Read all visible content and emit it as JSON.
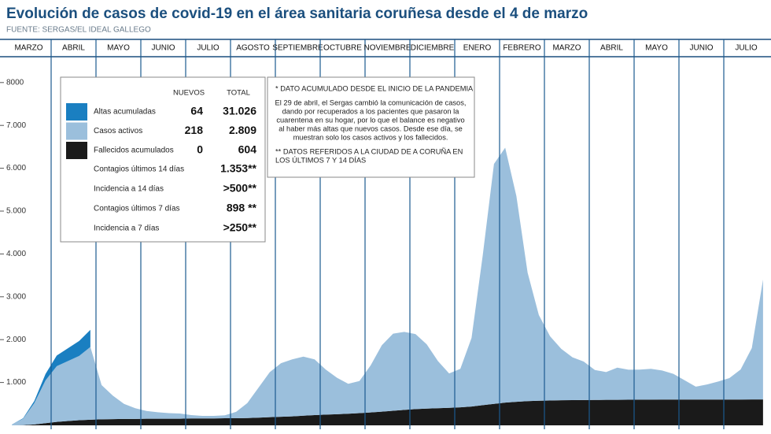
{
  "chart_data": {
    "type": "stacked_area",
    "title": "Evolución de casos de covid-19 en el área sanitaria coruñesa desde el 4 de marzo",
    "source": "FUENTE: SERGAS/EL IDEAL GALLEGO",
    "categories": [
      "MARZO",
      null,
      null,
      null,
      "ABRIL",
      null,
      null,
      null,
      "MAYO",
      null,
      null,
      null,
      "JUNIO",
      null,
      null,
      null,
      "JULIO",
      null,
      null,
      null,
      "AGOSTO",
      null,
      null,
      null,
      "SEPTIEMBRE",
      null,
      null,
      null,
      "OCTUBRE",
      null,
      null,
      null,
      "NOVIEMBRE",
      null,
      null,
      null,
      "DICIEMBRE",
      null,
      null,
      null,
      "ENERO",
      null,
      null,
      null,
      "FEBRERO",
      null,
      null,
      null,
      "MARZO",
      null,
      null,
      null,
      "ABRIL",
      null,
      null,
      null,
      "MAYO",
      null,
      null,
      null,
      "JUNIO",
      null,
      null,
      null,
      "JULIO",
      null,
      null,
      null
    ],
    "series": [
      {
        "name": "Altas acumuladas",
        "color": "#1a7fc1",
        "values": [
          0,
          10,
          50,
          150,
          250,
          300,
          350,
          400,
          null,
          null,
          null,
          null,
          null,
          null,
          null,
          null,
          null,
          null,
          null,
          null,
          null,
          null,
          null,
          null,
          null,
          null,
          null,
          null,
          null,
          null,
          null,
          null,
          null,
          null,
          null,
          null,
          null,
          null,
          null,
          null,
          null,
          null,
          null,
          null,
          null,
          null,
          null,
          null,
          null,
          null,
          null,
          null,
          null,
          null,
          null,
          null,
          null,
          null,
          null,
          null,
          null,
          null,
          null,
          null,
          null,
          null,
          null,
          null
        ]
      },
      {
        "name": "Casos activos",
        "color": "#9bbfdc",
        "values": [
          20,
          150,
          500,
          1000,
          1300,
          1400,
          1500,
          1700,
          800,
          550,
          350,
          250,
          180,
          150,
          130,
          120,
          80,
          60,
          60,
          70,
          150,
          350,
          700,
          1050,
          1250,
          1330,
          1380,
          1300,
          1050,
          850,
          700,
          750,
          1100,
          1550,
          1800,
          1820,
          1750,
          1500,
          1100,
          800,
          900,
          1600,
          3500,
          5600,
          5950,
          4800,
          3000,
          2000,
          1500,
          1200,
          1000,
          900,
          700,
          650,
          750,
          700,
          700,
          720,
          680,
          600,
          450,
          300,
          350,
          420,
          500,
          700,
          1200,
          2800
        ]
      },
      {
        "name": "Fallecidos acumulados",
        "color": "#1a1a1a",
        "values": [
          0,
          5,
          20,
          50,
          80,
          100,
          120,
          130,
          140,
          145,
          150,
          150,
          155,
          155,
          155,
          155,
          160,
          160,
          160,
          165,
          165,
          170,
          180,
          190,
          200,
          210,
          225,
          240,
          250,
          260,
          270,
          285,
          300,
          320,
          340,
          360,
          380,
          390,
          400,
          410,
          420,
          440,
          470,
          500,
          530,
          550,
          565,
          575,
          580,
          585,
          588,
          590,
          592,
          594,
          596,
          598,
          600,
          600,
          601,
          601,
          602,
          602,
          603,
          603,
          603,
          603,
          604,
          604
        ]
      }
    ],
    "ylim": [
      0,
      8200
    ],
    "yticks": [
      {
        "value": 1000,
        "label": "1.000"
      },
      {
        "value": 2000,
        "label": "2.000"
      },
      {
        "value": 3000,
        "label": "3.000"
      },
      {
        "value": 4000,
        "label": "4.000"
      },
      {
        "value": 5000,
        "label": "5.000"
      },
      {
        "value": 6000,
        "label": "6.000"
      },
      {
        "value": 7000,
        "label": "7.000"
      },
      8000
    ],
    "table": {
      "columns": [
        "NUEVOS",
        "TOTAL"
      ],
      "rows": [
        {
          "nuevos": "64",
          "total": "31.026"
        },
        {
          "nuevos": "218",
          "total": "2.809"
        },
        {
          "nuevos": "0",
          "total": "604"
        }
      ],
      "extra_rows": [
        {
          "label": "Contagios últimos 14 días",
          "value": "1.353**"
        },
        {
          "label": "Incidencia a 14 días",
          "value": ">500**"
        },
        {
          "label": "Contagios últimos 7 días",
          "value": "898 **"
        },
        {
          "label": "Incidencia a 7 días",
          "value": ">250**"
        }
      ]
    },
    "notes": [
      [
        "* DATO ACUMULADO DESDE EL INICIO DE LA PANDEMIA"
      ],
      [
        "El 29 de abril, el Sergas cambió la comunicación de casos,",
        "dando por recuperados a los pacientes que pasaron la",
        "cuarentena en su hogar, por lo que el balance es negativo",
        "al haber más altas que nuevos casos. Desde ese día, se",
        "muestran solo los casos activos y los fallecidos."
      ],
      [
        "** DATOS REFERIDOS A LA CIUDAD DE A CORUÑA EN",
        "LOS ÚLTIMOS 7 Y 14 DÍAS"
      ]
    ]
  }
}
